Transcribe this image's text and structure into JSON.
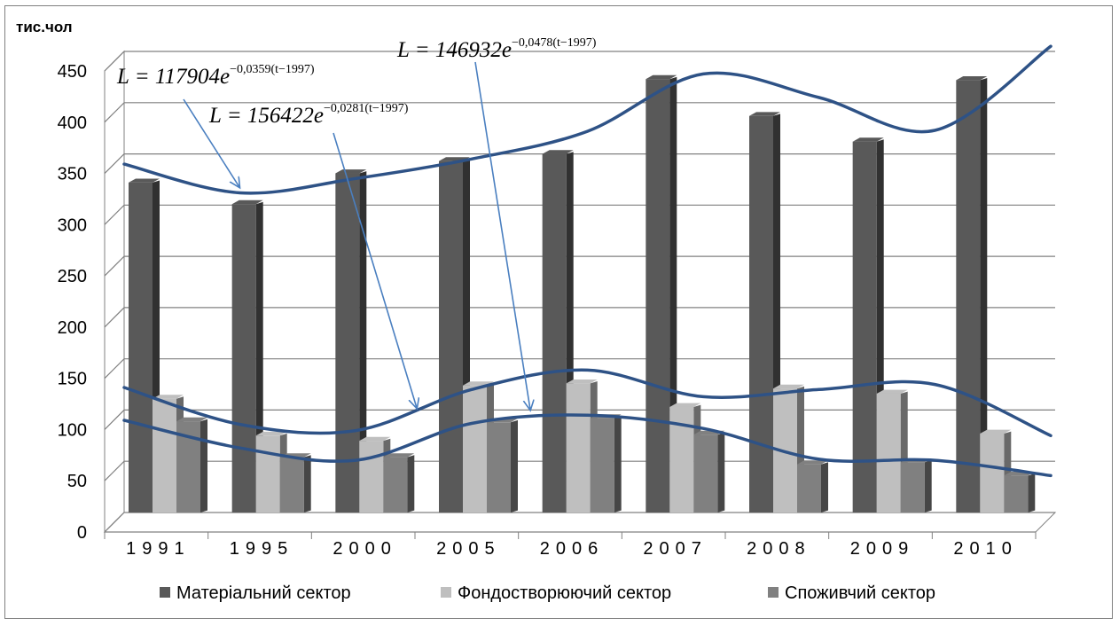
{
  "chart_data": {
    "type": "bar",
    "y_unit": "тис.чол",
    "categories": [
      "1991",
      "1995",
      "2000",
      "2005",
      "2006",
      "2007",
      "2008",
      "2009",
      "2010"
    ],
    "series": [
      {
        "name": "Матеріальний сектор",
        "color": "#595959",
        "values": [
          322,
          301,
          331,
          343,
          350,
          423,
          387,
          362,
          422
        ]
      },
      {
        "name": "Фондостворюючий сектор",
        "color": "#bfbfbf",
        "values": [
          111,
          75,
          70,
          124,
          126,
          103,
          121,
          116,
          77
        ]
      },
      {
        "name": "Споживчий сектор",
        "color": "#808080",
        "values": [
          89,
          54,
          54,
          88,
          92,
          76,
          47,
          49,
          36
        ]
      }
    ],
    "ylim": [
      0,
      450
    ],
    "yticks": [
      0,
      50,
      100,
      150,
      200,
      250,
      300,
      350,
      400,
      450
    ],
    "grid": true,
    "legend_position": "bottom",
    "trend_lines": [
      {
        "color": "#2e5286",
        "points": [
          [
            0,
            340
          ],
          [
            1,
            312
          ],
          [
            2,
            326
          ],
          [
            3,
            345
          ],
          [
            4,
            372
          ],
          [
            5,
            428
          ],
          [
            6,
            405
          ],
          [
            7,
            373
          ],
          [
            8,
            455
          ]
        ]
      },
      {
        "color": "#2e5286",
        "points": [
          [
            0,
            122
          ],
          [
            1,
            86
          ],
          [
            2,
            80
          ],
          [
            3,
            120
          ],
          [
            4,
            139
          ],
          [
            5,
            113
          ],
          [
            6,
            120
          ],
          [
            7,
            125
          ],
          [
            8,
            75
          ]
        ]
      },
      {
        "color": "#2e5286",
        "points": [
          [
            0,
            90
          ],
          [
            1,
            63
          ],
          [
            2,
            51
          ],
          [
            3,
            87
          ],
          [
            4,
            95
          ],
          [
            5,
            82
          ],
          [
            6,
            52
          ],
          [
            7,
            51
          ],
          [
            8,
            36
          ]
        ]
      }
    ],
    "annotations": [
      {
        "id": "eq1",
        "prefix": "L = 117904",
        "base": "e",
        "exponent": "−0,0359(t−1997)"
      },
      {
        "id": "eq2",
        "prefix": "L = 156422",
        "base": "e",
        "exponent": "−0,0281(t−1997)"
      },
      {
        "id": "eq3",
        "prefix": "L = 146932",
        "base": "e",
        "exponent": "−0,0478(t−1997)"
      }
    ]
  }
}
